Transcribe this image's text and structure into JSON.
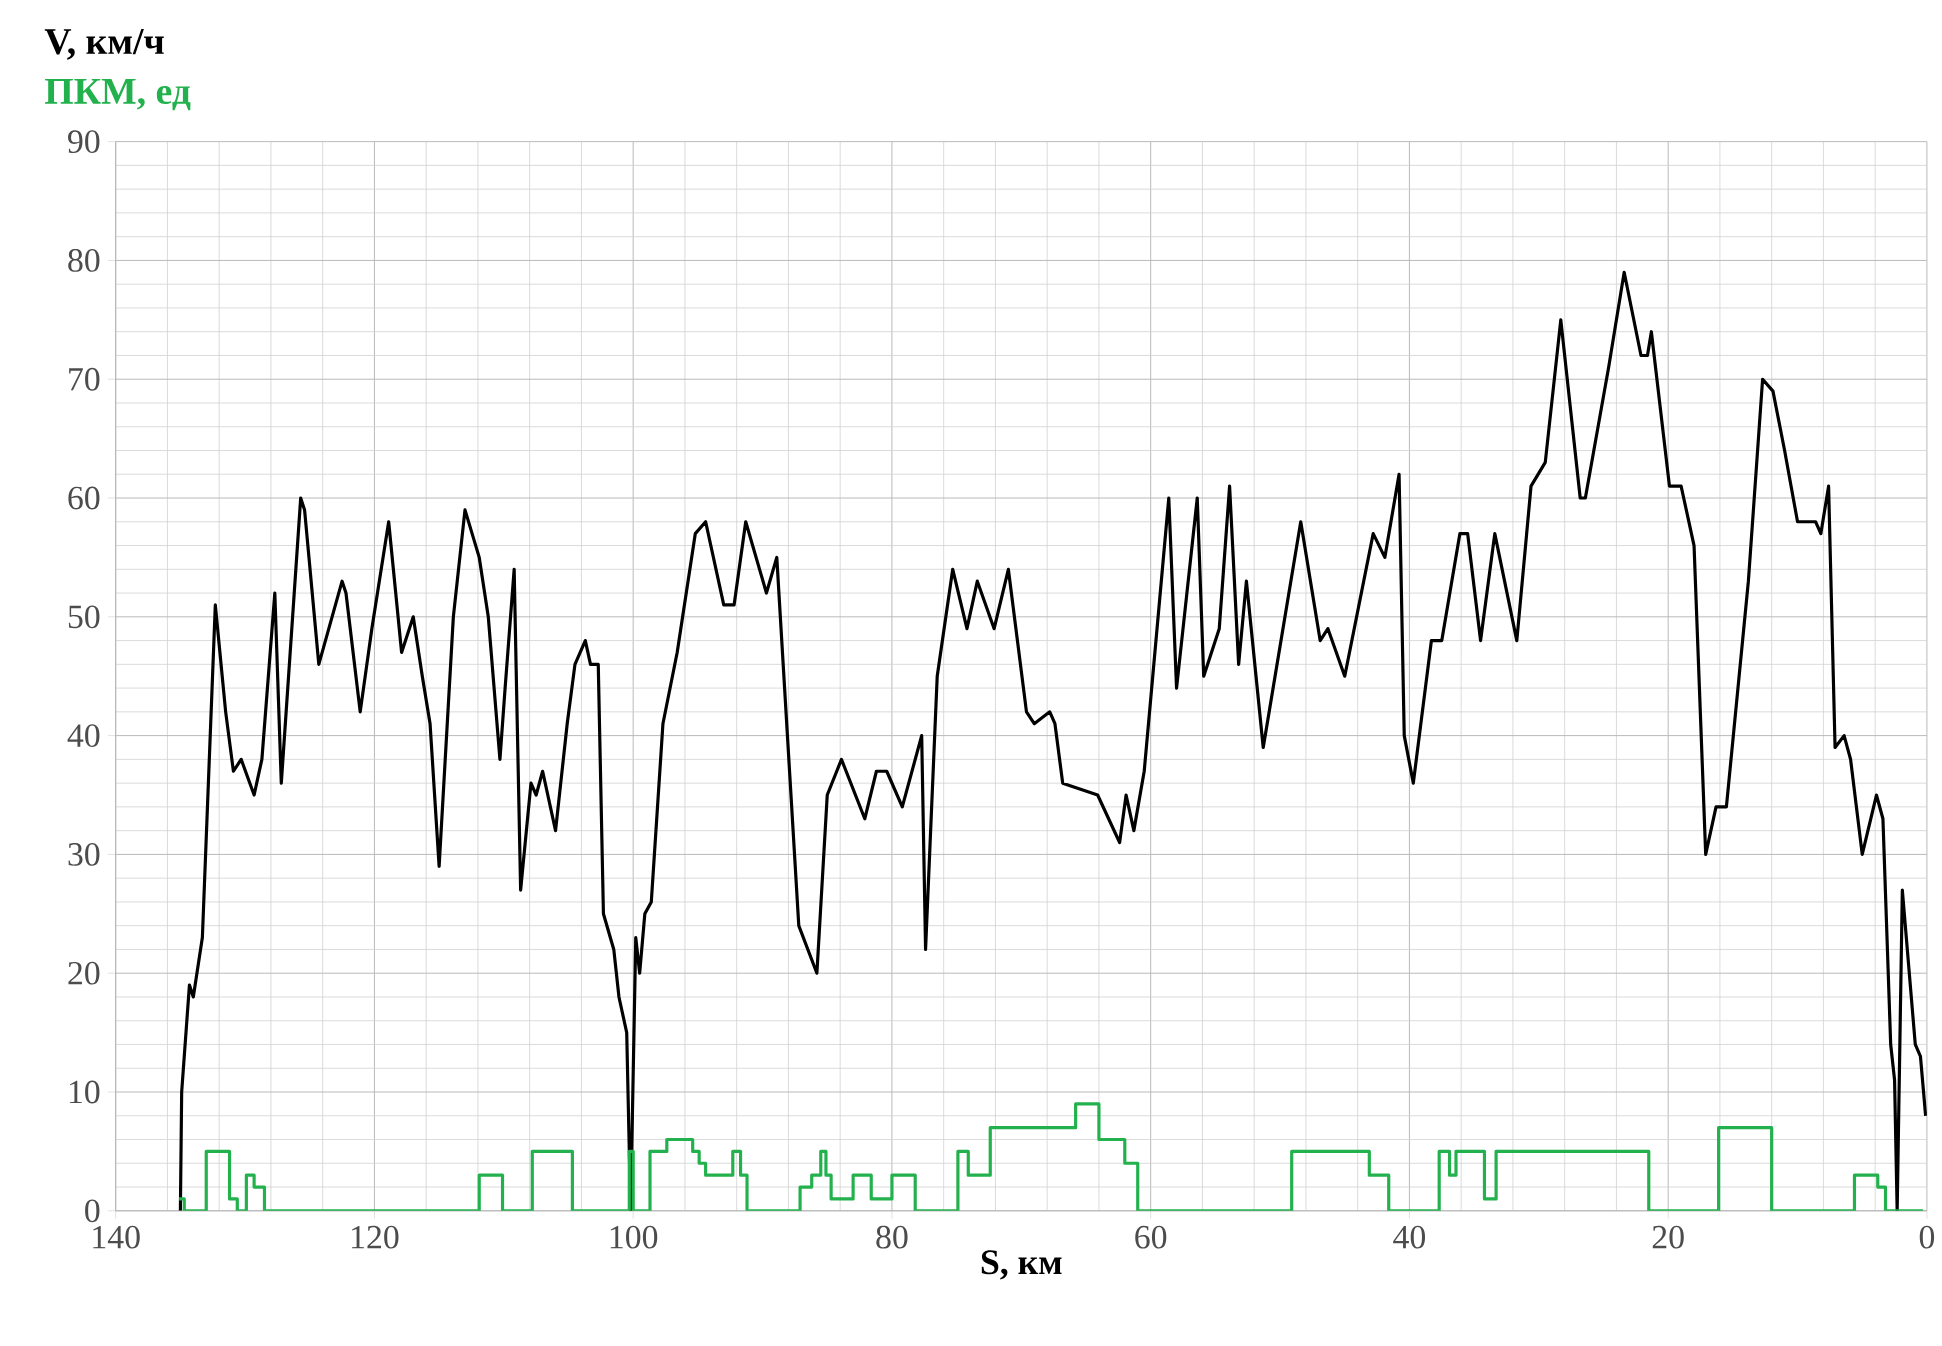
{
  "chart_data": {
    "type": "line",
    "xlabel": "S, км",
    "xlim": [
      140,
      0
    ],
    "ylim": [
      0,
      90
    ],
    "xticks": [
      140,
      120,
      100,
      80,
      60,
      40,
      20,
      0
    ],
    "yticks": [
      0,
      10,
      20,
      30,
      40,
      50,
      60,
      70,
      80,
      90
    ],
    "grid": true,
    "series": [
      {
        "name": "V, км/ч",
        "color": "#000000",
        "x": [
          135,
          134.9,
          134.3,
          134,
          133.3,
          132.3,
          131.5,
          130.9,
          130.3,
          129.3,
          128.7,
          127.7,
          127.2,
          125.7,
          125.4,
          124.3,
          122.5,
          122.2,
          121.1,
          120.2,
          118.9,
          117.9,
          117,
          116.3,
          115.7,
          115,
          113.9,
          113,
          111.9,
          111.2,
          110.3,
          109.9,
          109.2,
          108.7,
          107.9,
          107.5,
          107,
          106,
          105.1,
          104.5,
          103.7,
          103.3,
          102.7,
          102.3,
          101.5,
          101.1,
          100.5,
          100.2,
          99.8,
          99.5,
          99.1,
          98.6,
          97.7,
          96.6,
          95.2,
          94.4,
          93,
          92.2,
          91.3,
          89.7,
          88.9,
          87.2,
          85.8,
          85,
          83.9,
          82.1,
          81.2,
          80.4,
          79.2,
          77.7,
          77.4,
          76.5,
          75.3,
          74.2,
          73.4,
          72.1,
          71,
          69.6,
          69,
          67.8,
          67.4,
          66.8,
          64.1,
          62.4,
          61.9,
          61.3,
          60.5,
          58.6,
          58,
          56.4,
          55.9,
          54.7,
          53.9,
          53.2,
          52.6,
          51.3,
          48.4,
          46.9,
          46.3,
          45,
          42.8,
          41.9,
          40.8,
          40.4,
          39.7,
          38.3,
          37.5,
          36.1,
          35.5,
          34.5,
          33.4,
          31.7,
          30.6,
          29.5,
          28.3,
          26.8,
          26.4,
          24.6,
          23.4,
          22.1,
          21.6,
          21.3,
          19.9,
          19,
          18,
          17.1,
          16.3,
          15.5,
          13.8,
          12.7,
          11.9,
          11,
          10,
          8.6,
          8.2,
          7.6,
          7.1,
          6.4,
          5.9,
          5,
          3.9,
          3.4,
          2.8,
          2.5,
          2.3,
          1.9,
          0.9,
          0.5,
          0.1
        ],
        "values": [
          0,
          10,
          19,
          18,
          23,
          51,
          42,
          37,
          38,
          35,
          38,
          52,
          36,
          60,
          59,
          46,
          53,
          52,
          42,
          49,
          58,
          47,
          50,
          45,
          41,
          29,
          50,
          59,
          55,
          50,
          38,
          44,
          54,
          27,
          36,
          35,
          37,
          32,
          41,
          46,
          48,
          46,
          46,
          25,
          22,
          18,
          15,
          0,
          23,
          20,
          25,
          26,
          41,
          47,
          57,
          58,
          51,
          51,
          58,
          52,
          55,
          24,
          20,
          35,
          38,
          33,
          37,
          37,
          34,
          40,
          22,
          45,
          54,
          49,
          53,
          49,
          54,
          42,
          41,
          42,
          41,
          36,
          35,
          31,
          35,
          32,
          37,
          60,
          44,
          60,
          45,
          49,
          61,
          46,
          53,
          39,
          58,
          48,
          49,
          45,
          57,
          55,
          62,
          40,
          36,
          48,
          48,
          57,
          57,
          48,
          57,
          48,
          61,
          63,
          75,
          60,
          60,
          71,
          79,
          72,
          72,
          74,
          61,
          61,
          56,
          30,
          34,
          34,
          53,
          70,
          69,
          64,
          58,
          58,
          57,
          61,
          39,
          40,
          38,
          30,
          35,
          33,
          14,
          11,
          0,
          27,
          14,
          13,
          8
        ]
      },
      {
        "name": "ПКМ, ед",
        "color": "#22b14c",
        "type": "step",
        "x": [
          135.1,
          134.7,
          133,
          131.2,
          130.6,
          129.9,
          129.3,
          128.5,
          111.9,
          110.1,
          107.8,
          104.7,
          100.3,
          100,
          98.7,
          97.4,
          95.4,
          94.9,
          94.4,
          92.3,
          91.7,
          91.2,
          87.1,
          86.2,
          85.5,
          85.1,
          84.7,
          83,
          81.6,
          80,
          78.2,
          74.9,
          74.1,
          72.4,
          65.8,
          64,
          62,
          61,
          49.1,
          43.1,
          41.6,
          37.7,
          36.9,
          36.4,
          34.2,
          33.3,
          21.5,
          16.1,
          12,
          5.6,
          3.8,
          3.2,
          0.3
        ],
        "values": [
          1,
          0,
          5,
          1,
          0,
          3,
          2,
          0,
          3,
          0,
          5,
          0,
          5,
          0,
          5,
          6,
          5,
          4,
          3,
          5,
          3,
          0,
          2,
          3,
          5,
          3,
          1,
          3,
          1,
          3,
          0,
          5,
          3,
          7,
          9,
          6,
          4,
          0,
          5,
          3,
          0,
          5,
          3,
          5,
          1,
          5,
          0,
          7,
          0,
          3,
          2,
          0,
          0
        ]
      }
    ]
  }
}
